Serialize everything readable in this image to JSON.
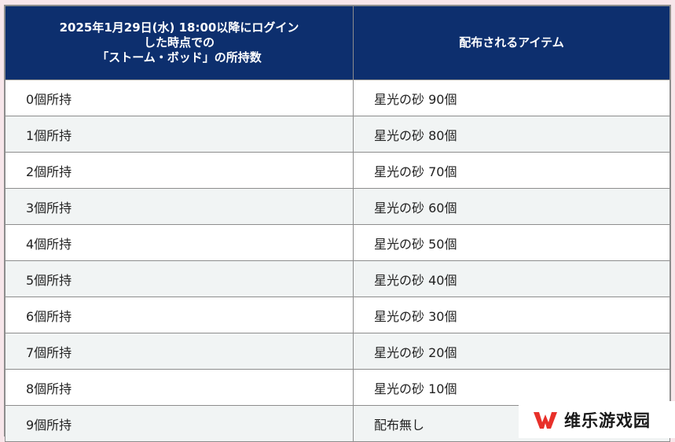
{
  "table": {
    "header": {
      "col1_lines": [
        "2025年1月29日(水) 18:00以降にログイン",
        "した時点での",
        "「ストーム・ボッド」の所持数"
      ],
      "col2": "配布されるアイテム"
    },
    "rows": [
      {
        "held": "0個所持",
        "item": "星光の砂 90個"
      },
      {
        "held": "1個所持",
        "item": "星光の砂 80個"
      },
      {
        "held": "2個所持",
        "item": "星光の砂 70個"
      },
      {
        "held": "3個所持",
        "item": "星光の砂 60個"
      },
      {
        "held": "4個所持",
        "item": "星光の砂 50個"
      },
      {
        "held": "5個所持",
        "item": "星光の砂 40個"
      },
      {
        "held": "6個所持",
        "item": "星光の砂 30個"
      },
      {
        "held": "7個所持",
        "item": "星光の砂 20個"
      },
      {
        "held": "8個所持",
        "item": "星光の砂 10個"
      },
      {
        "held": "9個所持",
        "item": "配布無し"
      }
    ]
  },
  "watermark": {
    "text": "维乐游戏园",
    "logo_icon": "w-logo-icon",
    "logo_color": "#e8302a"
  },
  "colors": {
    "header_bg": "#0d2f6e",
    "header_text": "#ffffff",
    "row_alt_bg": "#f1f4f4",
    "border": "#8d8d8d",
    "page_bg": "#f7e6ea"
  }
}
